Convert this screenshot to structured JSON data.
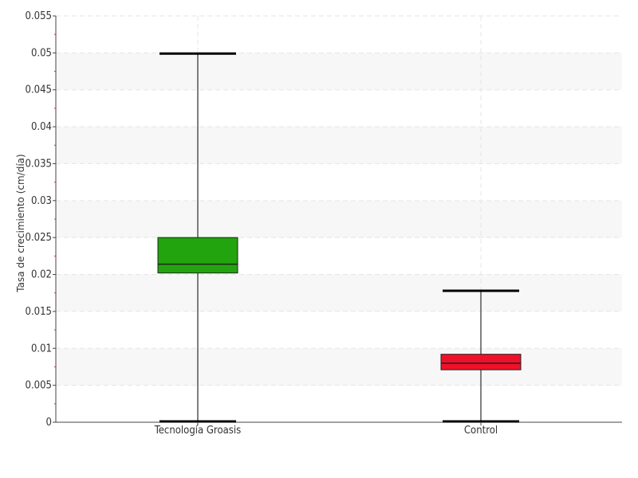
{
  "chart_data": {
    "type": "box",
    "ylabel": "Tasa de crecimiento (cm/día)",
    "xlabel": "",
    "ylim": [
      0,
      0.055
    ],
    "y_ticks": [
      "0",
      "0.005",
      "0.01",
      "0.015",
      "0.02",
      "0.025",
      "0.03",
      "0.035",
      "0.04",
      "0.045",
      "0.05",
      "0.055"
    ],
    "y_tick_values": [
      0,
      0.005,
      0.01,
      0.015,
      0.02,
      0.025,
      0.03,
      0.035,
      0.04,
      0.045,
      0.05,
      0.055
    ],
    "grid": true,
    "categories": [
      "Tecnología Groasis",
      "Control"
    ],
    "boxes": [
      {
        "category": "Tecnología Groasis",
        "min": 0.0,
        "q1": 0.0202,
        "median": 0.0214,
        "q3": 0.025,
        "max": 0.0499,
        "color": "#22a40e"
      },
      {
        "category": "Control",
        "min": 0.0,
        "q1": 0.0071,
        "median": 0.008,
        "q3": 0.0092,
        "max": 0.0178,
        "color": "#f0102a"
      }
    ]
  }
}
